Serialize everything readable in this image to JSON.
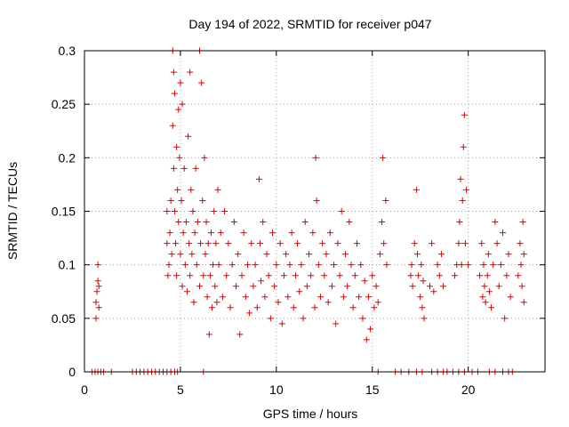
{
  "chart_data": {
    "type": "scatter",
    "title": "Day 194 of 2022, SRMTID for receiver p047",
    "xlabel": "GPS time / hours",
    "ylabel": "SRMTID / TECUs",
    "xlim": [
      0,
      24
    ],
    "ylim": [
      0,
      0.3
    ],
    "x_ticks": [
      0,
      5,
      10,
      15,
      20
    ],
    "x_tick_labels": [
      "0",
      "5",
      "10",
      "15",
      "20"
    ],
    "y_ticks": [
      0,
      0.05,
      0.1,
      0.15,
      0.2,
      0.25,
      0.3
    ],
    "y_tick_labels": [
      "0",
      "0.05",
      "0.1",
      "0.15",
      "0.2",
      "0.25",
      "0.3"
    ],
    "grid": true,
    "legend": "none",
    "marker": "plus",
    "color": "#e00000",
    "series": [
      {
        "name": "SRMTID",
        "points": [
          [
            0.6,
            0.05
          ],
          [
            0.6,
            0.065
          ],
          [
            0.65,
            0.075
          ],
          [
            0.7,
            0.085
          ],
          [
            0.7,
            0.1
          ],
          [
            0.75,
            0.08
          ],
          [
            0.75,
            0.06
          ],
          [
            4.3,
            0.12
          ],
          [
            4.3,
            0.15
          ],
          [
            4.35,
            0.09
          ],
          [
            4.4,
            0.1
          ],
          [
            4.45,
            0.13
          ],
          [
            4.5,
            0.16
          ],
          [
            4.55,
            0.11
          ],
          [
            4.6,
            0.3
          ],
          [
            4.6,
            0.23
          ],
          [
            4.65,
            0.28
          ],
          [
            4.65,
            0.19
          ],
          [
            4.7,
            0.15
          ],
          [
            4.7,
            0.26
          ],
          [
            4.75,
            0.12
          ],
          [
            4.8,
            0.21
          ],
          [
            4.8,
            0.09
          ],
          [
            4.85,
            0.17
          ],
          [
            4.9,
            0.245
          ],
          [
            4.9,
            0.14
          ],
          [
            4.95,
            0.2
          ],
          [
            5.0,
            0.11
          ],
          [
            5.0,
            0.27
          ],
          [
            5.05,
            0.16
          ],
          [
            5.1,
            0.25
          ],
          [
            5.1,
            0.08
          ],
          [
            5.15,
            0.13
          ],
          [
            5.2,
            0.19
          ],
          [
            5.25,
            0.1
          ],
          [
            5.3,
            0.14
          ],
          [
            5.35,
            0.075
          ],
          [
            5.4,
            0.22
          ],
          [
            5.45,
            0.12
          ],
          [
            5.5,
            0.28
          ],
          [
            5.5,
            0.09
          ],
          [
            5.55,
            0.17
          ],
          [
            5.6,
            0.11
          ],
          [
            5.65,
            0.15
          ],
          [
            5.7,
            0.065
          ],
          [
            5.75,
            0.13
          ],
          [
            5.8,
            0.19
          ],
          [
            5.85,
            0.1
          ],
          [
            5.9,
            0.14
          ],
          [
            6.0,
            0.3
          ],
          [
            6.0,
            0.08
          ],
          [
            6.05,
            0.12
          ],
          [
            6.1,
            0.27
          ],
          [
            6.15,
            0.16
          ],
          [
            6.2,
            0.09
          ],
          [
            6.25,
            0.2
          ],
          [
            6.3,
            0.11
          ],
          [
            6.35,
            0.14
          ],
          [
            6.4,
            0.07
          ],
          [
            6.45,
            0.12
          ],
          [
            6.5,
            0.035
          ],
          [
            6.55,
            0.09
          ],
          [
            6.6,
            0.13
          ],
          [
            6.65,
            0.06
          ],
          [
            6.7,
            0.1
          ],
          [
            6.75,
            0.15
          ],
          [
            6.8,
            0.08
          ],
          [
            6.85,
            0.12
          ],
          [
            6.9,
            0.065
          ],
          [
            6.95,
            0.17
          ],
          [
            7.0,
            0.1
          ],
          [
            7.1,
            0.13
          ],
          [
            7.2,
            0.07
          ],
          [
            7.3,
            0.15
          ],
          [
            7.4,
            0.09
          ],
          [
            7.5,
            0.12
          ],
          [
            7.6,
            0.06
          ],
          [
            7.7,
            0.1
          ],
          [
            7.8,
            0.14
          ],
          [
            7.9,
            0.08
          ],
          [
            8.0,
            0.11
          ],
          [
            8.1,
            0.035
          ],
          [
            8.2,
            0.09
          ],
          [
            8.3,
            0.13
          ],
          [
            8.4,
            0.07
          ],
          [
            8.5,
            0.1
          ],
          [
            8.6,
            0.055
          ],
          [
            8.7,
            0.12
          ],
          [
            8.8,
            0.08
          ],
          [
            8.9,
            0.1
          ],
          [
            9.0,
            0.06
          ],
          [
            9.1,
            0.18
          ],
          [
            9.15,
            0.12
          ],
          [
            9.2,
            0.085
          ],
          [
            9.3,
            0.14
          ],
          [
            9.4,
            0.07
          ],
          [
            9.5,
            0.11
          ],
          [
            9.6,
            0.09
          ],
          [
            9.7,
            0.05
          ],
          [
            9.8,
            0.13
          ],
          [
            9.9,
            0.08
          ],
          [
            10.0,
            0.1
          ],
          [
            10.1,
            0.065
          ],
          [
            10.2,
            0.12
          ],
          [
            10.3,
            0.045
          ],
          [
            10.4,
            0.09
          ],
          [
            10.5,
            0.11
          ],
          [
            10.6,
            0.07
          ],
          [
            10.7,
            0.1
          ],
          [
            10.8,
            0.13
          ],
          [
            10.9,
            0.06
          ],
          [
            11.0,
            0.09
          ],
          [
            11.1,
            0.12
          ],
          [
            11.2,
            0.075
          ],
          [
            11.3,
            0.1
          ],
          [
            11.4,
            0.05
          ],
          [
            11.5,
            0.14
          ],
          [
            11.6,
            0.08
          ],
          [
            11.7,
            0.11
          ],
          [
            11.8,
            0.09
          ],
          [
            11.9,
            0.13
          ],
          [
            12.0,
            0.06
          ],
          [
            12.05,
            0.2
          ],
          [
            12.1,
            0.16
          ],
          [
            12.2,
            0.1
          ],
          [
            12.3,
            0.07
          ],
          [
            12.4,
            0.12
          ],
          [
            12.5,
            0.09
          ],
          [
            12.6,
            0.11
          ],
          [
            12.7,
            0.065
          ],
          [
            12.8,
            0.13
          ],
          [
            12.9,
            0.08
          ],
          [
            13.0,
            0.1
          ],
          [
            13.1,
            0.045
          ],
          [
            13.2,
            0.12
          ],
          [
            13.3,
            0.09
          ],
          [
            13.4,
            0.15
          ],
          [
            13.5,
            0.07
          ],
          [
            13.6,
            0.11
          ],
          [
            13.7,
            0.08
          ],
          [
            13.8,
            0.14
          ],
          [
            13.9,
            0.1
          ],
          [
            14.0,
            0.06
          ],
          [
            14.1,
            0.09
          ],
          [
            14.2,
            0.12
          ],
          [
            14.3,
            0.07
          ],
          [
            14.4,
            0.1
          ],
          [
            14.5,
            0.05
          ],
          [
            14.6,
            0.085
          ],
          [
            14.7,
            0.03
          ],
          [
            14.8,
            0.07
          ],
          [
            14.9,
            0.04
          ],
          [
            15.0,
            0.09
          ],
          [
            15.1,
            0.06
          ],
          [
            15.2,
            0.08
          ],
          [
            15.3,
            0.065
          ],
          [
            15.4,
            0.11
          ],
          [
            15.5,
            0.14
          ],
          [
            15.55,
            0.2
          ],
          [
            15.6,
            0.12
          ],
          [
            15.7,
            0.16
          ],
          [
            15.75,
            0.1
          ],
          [
            17.0,
            0.09
          ],
          [
            17.05,
            0.1
          ],
          [
            17.1,
            0.08
          ],
          [
            17.2,
            0.12
          ],
          [
            17.3,
            0.17
          ],
          [
            17.35,
            0.11
          ],
          [
            17.4,
            0.09
          ],
          [
            17.5,
            0.07
          ],
          [
            17.55,
            0.1
          ],
          [
            17.6,
            0.06
          ],
          [
            17.65,
            0.085
          ],
          [
            17.7,
            0.05
          ],
          [
            18.0,
            0.08
          ],
          [
            18.1,
            0.12
          ],
          [
            18.2,
            0.075
          ],
          [
            18.4,
            0.1
          ],
          [
            18.5,
            0.09
          ],
          [
            18.6,
            0.11
          ],
          [
            18.7,
            0.08
          ],
          [
            19.3,
            0.09
          ],
          [
            19.4,
            0.1
          ],
          [
            19.5,
            0.12
          ],
          [
            19.55,
            0.14
          ],
          [
            19.6,
            0.18
          ],
          [
            19.65,
            0.1
          ],
          [
            19.7,
            0.16
          ],
          [
            19.75,
            0.21
          ],
          [
            19.8,
            0.24
          ],
          [
            19.85,
            0.12
          ],
          [
            19.9,
            0.17
          ],
          [
            20.0,
            0.1
          ],
          [
            20.6,
            0.09
          ],
          [
            20.7,
            0.12
          ],
          [
            20.75,
            0.07
          ],
          [
            20.8,
            0.1
          ],
          [
            20.85,
            0.08
          ],
          [
            20.9,
            0.065
          ],
          [
            21.0,
            0.09
          ],
          [
            21.05,
            0.11
          ],
          [
            21.1,
            0.075
          ],
          [
            21.2,
            0.06
          ],
          [
            21.3,
            0.1
          ],
          [
            21.4,
            0.14
          ],
          [
            21.5,
            0.12
          ],
          [
            21.6,
            0.08
          ],
          [
            21.7,
            0.1
          ],
          [
            21.8,
            0.13
          ],
          [
            21.9,
            0.05
          ],
          [
            22.0,
            0.09
          ],
          [
            22.1,
            0.11
          ],
          [
            22.2,
            0.07
          ],
          [
            22.6,
            0.09
          ],
          [
            22.7,
            0.12
          ],
          [
            22.75,
            0.1
          ],
          [
            22.8,
            0.08
          ],
          [
            22.85,
            0.14
          ],
          [
            22.9,
            0.11
          ],
          [
            22.9,
            0.065
          ],
          [
            0.4,
            0
          ],
          [
            0.55,
            0
          ],
          [
            0.7,
            0
          ],
          [
            0.85,
            0
          ],
          [
            1.0,
            0
          ],
          [
            1.4,
            0
          ],
          [
            2.5,
            0
          ],
          [
            2.7,
            0
          ],
          [
            2.9,
            0
          ],
          [
            3.1,
            0
          ],
          [
            3.3,
            0
          ],
          [
            3.5,
            0
          ],
          [
            3.7,
            0
          ],
          [
            3.9,
            0
          ],
          [
            4.1,
            0
          ],
          [
            4.3,
            0
          ],
          [
            4.5,
            0
          ],
          [
            4.7,
            0
          ],
          [
            4.85,
            0
          ],
          [
            6.2,
            0
          ],
          [
            15.3,
            0
          ],
          [
            16.2,
            0
          ],
          [
            16.5,
            0
          ],
          [
            16.9,
            0
          ],
          [
            17.3,
            0
          ],
          [
            17.6,
            0
          ],
          [
            18.1,
            0
          ],
          [
            18.4,
            0
          ],
          [
            18.7,
            0
          ],
          [
            18.9,
            0
          ],
          [
            19.2,
            0
          ],
          [
            19.5,
            0
          ],
          [
            19.8,
            0
          ],
          [
            20.2,
            0
          ],
          [
            20.5,
            0
          ],
          [
            21.1,
            0
          ],
          [
            21.4,
            0
          ],
          [
            21.8,
            0
          ],
          [
            22.1,
            0
          ],
          [
            22.3,
            0
          ]
        ]
      }
    ]
  }
}
